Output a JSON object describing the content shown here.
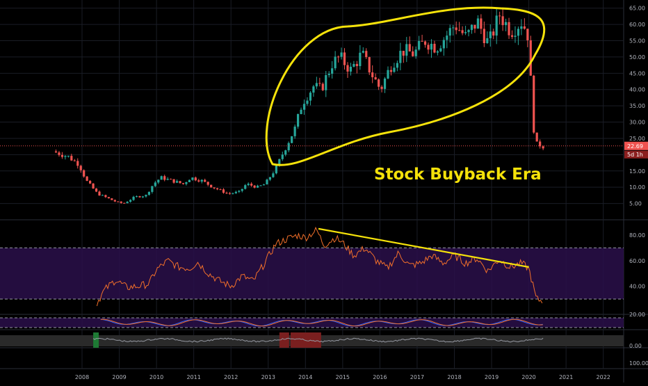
{
  "chart_data": {
    "type": "candlestick",
    "annotation": "Stock Buyback Era",
    "price_axis": {
      "ticks": [
        "65.00",
        "60.00",
        "55.00",
        "50.00",
        "45.00",
        "40.00",
        "35.00",
        "30.00",
        "25.00",
        "20.00",
        "15.00",
        "10.00",
        "5.00"
      ],
      "ylim": [
        0,
        67.5
      ],
      "last_price": "22.69",
      "countdown": "5d 1h"
    },
    "x_axis": {
      "ticks": [
        "2008",
        "2009",
        "2010",
        "2011",
        "2012",
        "2013",
        "2014",
        "2015",
        "2016",
        "2017",
        "2018",
        "2019",
        "2020",
        "2021",
        "2022"
      ]
    },
    "rsi_panel": {
      "ticks": [
        "80.00",
        "60.00",
        "40.00"
      ],
      "upper": 70,
      "lower": 30
    },
    "stoch_panel": {
      "ticks": [
        "20.00"
      ]
    },
    "histogram_panel": {
      "ticks": [
        "0.00",
        "100.00"
      ]
    },
    "colors": {
      "up": "#26a69a",
      "down": "#ef5350",
      "annotation": "#f5e20a",
      "rsi": "#f3702a",
      "band": "#2a0f4a",
      "stoch_fast": "#2962ff",
      "stoch_slow": "#f3702a"
    },
    "price_anchors": [
      [
        2007.3,
        21
      ],
      [
        2007.7,
        19.5
      ],
      [
        2008.0,
        17
      ],
      [
        2008.2,
        12
      ],
      [
        2008.5,
        8
      ],
      [
        2008.8,
        6.5
      ],
      [
        2009.0,
        5.5
      ],
      [
        2009.2,
        5
      ],
      [
        2009.5,
        7
      ],
      [
        2009.8,
        7.5
      ],
      [
        2010.0,
        11
      ],
      [
        2010.2,
        13
      ],
      [
        2010.5,
        12
      ],
      [
        2010.8,
        11
      ],
      [
        2011.0,
        13
      ],
      [
        2011.3,
        12
      ],
      [
        2011.6,
        10
      ],
      [
        2011.9,
        8.5
      ],
      [
        2012.0,
        8
      ],
      [
        2012.3,
        8.5
      ],
      [
        2012.5,
        11
      ],
      [
        2012.8,
        10
      ],
      [
        2013.0,
        11
      ],
      [
        2013.3,
        16
      ],
      [
        2013.5,
        21
      ],
      [
        2013.8,
        28
      ],
      [
        2014.0,
        36
      ],
      [
        2014.3,
        41
      ],
      [
        2014.5,
        40
      ],
      [
        2014.8,
        48
      ],
      [
        2015.0,
        50
      ],
      [
        2015.3,
        46
      ],
      [
        2015.6,
        51
      ],
      [
        2015.9,
        44
      ],
      [
        2016.1,
        40
      ],
      [
        2016.4,
        48
      ],
      [
        2016.7,
        52
      ],
      [
        2017.0,
        51
      ],
      [
        2017.3,
        55
      ],
      [
        2017.6,
        53
      ],
      [
        2017.9,
        57
      ],
      [
        2018.1,
        60
      ],
      [
        2018.4,
        56
      ],
      [
        2018.7,
        61
      ],
      [
        2019.0,
        54
      ],
      [
        2019.3,
        63
      ],
      [
        2019.6,
        58
      ],
      [
        2019.9,
        61
      ],
      [
        2020.05,
        57
      ],
      [
        2020.15,
        40
      ],
      [
        2020.25,
        22
      ],
      [
        2020.35,
        24
      ],
      [
        2020.4,
        22.7
      ]
    ],
    "rsi_anchors": [
      [
        2008.4,
        27
      ],
      [
        2008.6,
        37
      ],
      [
        2008.9,
        45
      ],
      [
        2009.2,
        39
      ],
      [
        2009.5,
        40
      ],
      [
        2009.8,
        42
      ],
      [
        2010.0,
        53
      ],
      [
        2010.3,
        60
      ],
      [
        2010.6,
        55
      ],
      [
        2010.9,
        54
      ],
      [
        2011.1,
        59
      ],
      [
        2011.4,
        50
      ],
      [
        2011.7,
        44
      ],
      [
        2012.0,
        40
      ],
      [
        2012.3,
        48
      ],
      [
        2012.6,
        44
      ],
      [
        2012.9,
        58
      ],
      [
        2013.2,
        73
      ],
      [
        2013.5,
        77
      ],
      [
        2013.8,
        80
      ],
      [
        2014.0,
        78
      ],
      [
        2014.3,
        84
      ],
      [
        2014.5,
        72
      ],
      [
        2014.8,
        78
      ],
      [
        2015.0,
        74
      ],
      [
        2015.3,
        64
      ],
      [
        2015.6,
        70
      ],
      [
        2015.9,
        60
      ],
      [
        2016.2,
        54
      ],
      [
        2016.5,
        66
      ],
      [
        2016.8,
        56
      ],
      [
        2017.1,
        58
      ],
      [
        2017.4,
        64
      ],
      [
        2017.7,
        58
      ],
      [
        2018.0,
        64
      ],
      [
        2018.3,
        58
      ],
      [
        2018.6,
        62
      ],
      [
        2018.9,
        52
      ],
      [
        2019.2,
        61
      ],
      [
        2019.5,
        55
      ],
      [
        2019.8,
        58
      ],
      [
        2020.0,
        54
      ],
      [
        2020.2,
        30
      ],
      [
        2020.4,
        28
      ]
    ],
    "overlay_trendline_rsi": [
      [
        2014.35,
        85
      ],
      [
        2020.0,
        55
      ]
    ]
  }
}
